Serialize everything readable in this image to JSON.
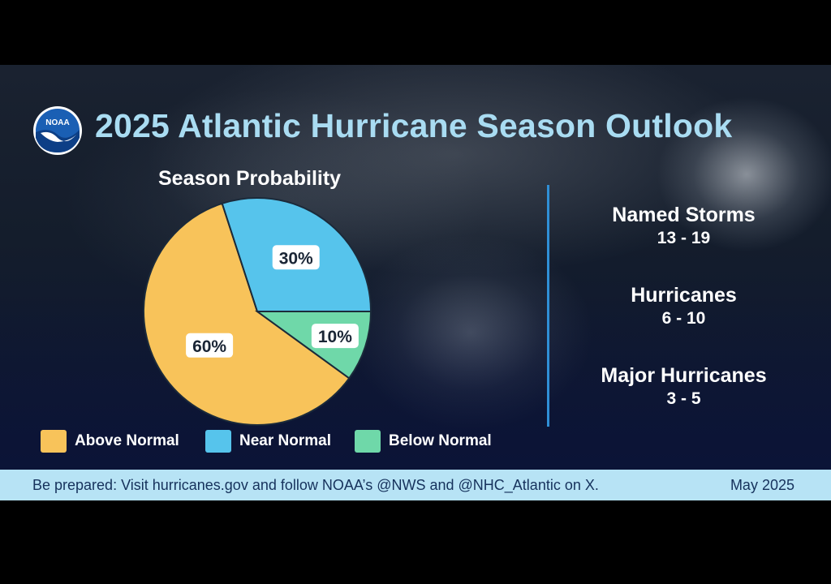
{
  "header": {
    "title": "2025 Atlantic Hurricane Season Outlook",
    "logo_text": "NOAA"
  },
  "chart_data": {
    "type": "pie",
    "title": "Season Probability",
    "categories": [
      "Above Normal",
      "Near Normal",
      "Below Normal"
    ],
    "values": [
      60,
      30,
      10
    ],
    "labels": [
      "60%",
      "30%",
      "10%"
    ],
    "colors": [
      "#f8c35a",
      "#56c4ec",
      "#6fd8a9"
    ],
    "legend": [
      {
        "label": "Above Normal",
        "color": "#f8c35a"
      },
      {
        "label": "Near Normal",
        "color": "#56c4ec"
      },
      {
        "label": "Below Normal",
        "color": "#6fd8a9"
      }
    ],
    "legend_position": "bottom"
  },
  "stats": [
    {
      "label": "Named Storms",
      "value": "13 - 19"
    },
    {
      "label": "Hurricanes",
      "value": "6 - 10"
    },
    {
      "label": "Major Hurricanes",
      "value": "3 - 5"
    }
  ],
  "footer": {
    "message": "Be prepared: Visit hurricanes.gov and follow NOAA’s @NWS and @NHC_Atlantic on X.",
    "date": "May 2025"
  },
  "colors": {
    "title": "#a9dcf2",
    "footer_bg": "#b7e3f5",
    "footer_text": "#16325c",
    "divider": "#2f8fd6"
  }
}
